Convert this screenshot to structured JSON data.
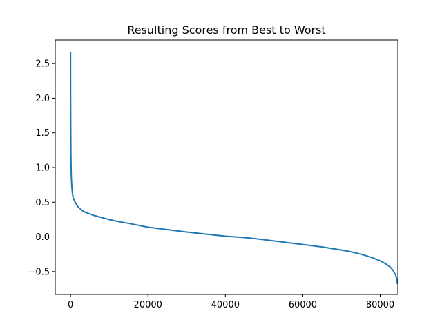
{
  "chart_data": {
    "type": "line",
    "title": "Resulting Scores from Best to Worst",
    "xlabel": "",
    "ylabel": "",
    "xlim": [
      -3950,
      84550
    ],
    "ylim": [
      -0.83,
      2.84
    ],
    "x_ticks": [
      0,
      20000,
      40000,
      60000,
      80000
    ],
    "x_tick_labels": [
      "0",
      "20000",
      "40000",
      "60000",
      "80000"
    ],
    "y_ticks": [
      -0.5,
      0.0,
      0.5,
      1.0,
      1.5,
      2.0,
      2.5
    ],
    "y_tick_labels": [
      "−0.5",
      "0.0",
      "0.5",
      "1.0",
      "1.5",
      "2.0",
      "2.5"
    ],
    "grid": false,
    "legend": "none",
    "line_color": "#1f77b4",
    "series": [
      {
        "x": [
          0,
          20,
          50,
          100,
          150,
          200,
          300,
          400,
          500,
          700,
          1000,
          1500,
          2000,
          3000,
          4000,
          5000,
          6000,
          8000,
          10000,
          12000,
          15000,
          20000,
          25000,
          30000,
          35000,
          40000,
          45000,
          50000,
          55000,
          60000,
          65000,
          70000,
          72000,
          74000,
          76000,
          78000,
          80000,
          81000,
          82000,
          82500,
          83000,
          83400,
          83700,
          84000,
          84200,
          84350,
          84450
        ],
        "y": [
          2.67,
          2.0,
          1.6,
          1.2,
          1.0,
          0.87,
          0.75,
          0.68,
          0.62,
          0.56,
          0.52,
          0.47,
          0.43,
          0.38,
          0.35,
          0.33,
          0.31,
          0.28,
          0.25,
          0.225,
          0.195,
          0.14,
          0.105,
          0.07,
          0.04,
          0.01,
          -0.01,
          -0.04,
          -0.075,
          -0.11,
          -0.145,
          -0.19,
          -0.21,
          -0.235,
          -0.265,
          -0.3,
          -0.345,
          -0.375,
          -0.41,
          -0.43,
          -0.46,
          -0.49,
          -0.52,
          -0.55,
          -0.59,
          -0.63,
          -0.68
        ]
      }
    ]
  }
}
